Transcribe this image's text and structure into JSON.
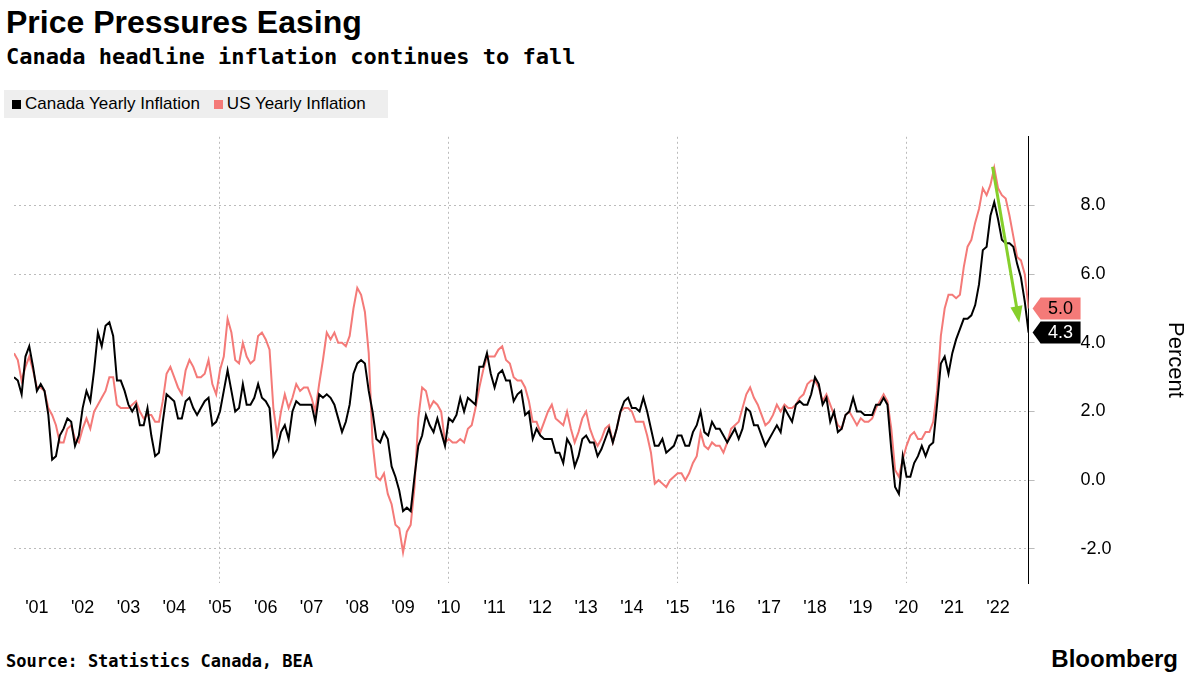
{
  "chart_data": {
    "type": "line",
    "title": "Price Pressures Easing",
    "subtitle": "Canada headline inflation continues to fall",
    "source": "Source: Statistics Canada, BEA",
    "brand": "Bloomberg",
    "ylabel": "Percent",
    "grid": true,
    "categories": [
      null,
      null,
      null,
      null,
      null,
      null,
      "'01",
      null,
      null,
      null,
      null,
      null,
      null,
      null,
      null,
      null,
      null,
      null,
      "'02",
      null,
      null,
      null,
      null,
      null,
      null,
      null,
      null,
      null,
      null,
      null,
      "'03",
      null,
      null,
      null,
      null,
      null,
      null,
      null,
      null,
      null,
      null,
      null,
      "'04",
      null,
      null,
      null,
      null,
      null,
      null,
      null,
      null,
      null,
      null,
      null,
      "'05",
      null,
      null,
      null,
      null,
      null,
      null,
      null,
      null,
      null,
      null,
      null,
      "'06",
      null,
      null,
      null,
      null,
      null,
      null,
      null,
      null,
      null,
      null,
      null,
      "'07",
      null,
      null,
      null,
      null,
      null,
      null,
      null,
      null,
      null,
      null,
      null,
      "'08",
      null,
      null,
      null,
      null,
      null,
      null,
      null,
      null,
      null,
      null,
      null,
      "'09",
      null,
      null,
      null,
      null,
      null,
      null,
      null,
      null,
      null,
      null,
      null,
      "'10",
      null,
      null,
      null,
      null,
      null,
      null,
      null,
      null,
      null,
      null,
      null,
      "'11",
      null,
      null,
      null,
      null,
      null,
      null,
      null,
      null,
      null,
      null,
      null,
      "'12",
      null,
      null,
      null,
      null,
      null,
      null,
      null,
      null,
      null,
      null,
      null,
      "'13",
      null,
      null,
      null,
      null,
      null,
      null,
      null,
      null,
      null,
      null,
      null,
      "'14",
      null,
      null,
      null,
      null,
      null,
      null,
      null,
      null,
      null,
      null,
      null,
      "'15",
      null,
      null,
      null,
      null,
      null,
      null,
      null,
      null,
      null,
      null,
      null,
      "'16",
      null,
      null,
      null,
      null,
      null,
      null,
      null,
      null,
      null,
      null,
      null,
      "'17",
      null,
      null,
      null,
      null,
      null,
      null,
      null,
      null,
      null,
      null,
      null,
      "'18",
      null,
      null,
      null,
      null,
      null,
      null,
      null,
      null,
      null,
      null,
      null,
      "'19",
      null,
      null,
      null,
      null,
      null,
      null,
      null,
      null,
      null,
      null,
      null,
      "'20",
      null,
      null,
      null,
      null,
      null,
      null,
      null,
      null,
      null,
      null,
      null,
      "'21",
      null,
      null,
      null,
      null,
      null,
      null,
      null,
      null,
      null,
      null,
      null,
      "'22",
      null,
      null,
      null,
      null,
      null,
      null,
      null,
      null
    ],
    "series": [
      {
        "name": "Canada Yearly Inflation",
        "color": "#000000",
        "values": [
          3.0,
          2.9,
          2.5,
          3.6,
          3.9,
          3.3,
          2.6,
          2.8,
          2.6,
          1.9,
          0.6,
          0.7,
          1.3,
          1.5,
          1.8,
          1.7,
          1.0,
          1.3,
          2.1,
          2.6,
          2.3,
          3.2,
          4.3,
          3.9,
          4.5,
          4.6,
          4.2,
          2.9,
          2.9,
          2.6,
          2.2,
          2.0,
          2.2,
          1.6,
          1.6,
          2.1,
          1.3,
          0.7,
          0.8,
          1.7,
          2.5,
          2.4,
          2.3,
          1.8,
          1.8,
          2.3,
          2.4,
          2.1,
          1.9,
          2.1,
          2.3,
          2.4,
          1.6,
          1.7,
          2.0,
          2.6,
          3.2,
          2.6,
          2.0,
          2.1,
          2.8,
          2.2,
          2.2,
          2.4,
          2.8,
          2.4,
          2.3,
          2.1,
          0.7,
          0.9,
          1.4,
          1.6,
          1.2,
          2.0,
          2.3,
          2.2,
          2.2,
          2.2,
          2.2,
          1.7,
          2.5,
          2.4,
          2.5,
          2.4,
          2.2,
          1.8,
          1.4,
          1.7,
          2.2,
          3.1,
          3.4,
          3.5,
          3.4,
          2.6,
          2.0,
          1.2,
          1.1,
          1.4,
          1.2,
          0.4,
          0.1,
          -0.3,
          -0.9,
          -0.8,
          -0.9,
          0.1,
          1.0,
          1.3,
          1.9,
          1.6,
          1.4,
          1.8,
          1.4,
          1.0,
          1.8,
          1.7,
          1.9,
          2.4,
          2.0,
          2.4,
          2.3,
          2.2,
          3.3,
          3.3,
          3.7,
          3.1,
          2.7,
          3.1,
          3.2,
          2.9,
          2.9,
          2.3,
          2.5,
          2.6,
          1.9,
          2.0,
          1.2,
          1.5,
          1.3,
          1.2,
          1.2,
          1.2,
          0.8,
          0.8,
          0.5,
          1.2,
          1.0,
          0.4,
          0.7,
          1.2,
          1.3,
          1.1,
          1.1,
          0.7,
          0.9,
          1.2,
          1.5,
          1.1,
          1.5,
          2.0,
          2.3,
          2.4,
          2.1,
          2.1,
          2.0,
          2.4,
          2.0,
          1.5,
          1.0,
          1.0,
          1.2,
          0.8,
          0.9,
          1.0,
          1.3,
          1.3,
          1.0,
          1.0,
          1.4,
          1.6,
          2.0,
          1.4,
          1.3,
          1.7,
          1.5,
          1.5,
          1.3,
          1.1,
          1.3,
          1.5,
          1.2,
          1.5,
          2.1,
          2.0,
          1.6,
          1.6,
          1.3,
          1.0,
          1.2,
          1.4,
          1.6,
          1.4,
          2.1,
          1.9,
          1.7,
          2.2,
          2.3,
          2.2,
          2.2,
          2.5,
          3.0,
          2.8,
          2.2,
          2.4,
          1.7,
          2.0,
          1.4,
          1.5,
          1.9,
          2.0,
          2.4,
          2.0,
          2.0,
          1.9,
          1.9,
          1.9,
          2.2,
          2.2,
          2.4,
          2.2,
          0.9,
          -0.2,
          -0.4,
          0.7,
          0.1,
          0.1,
          0.5,
          0.7,
          1.0,
          0.7,
          1.0,
          1.1,
          2.2,
          3.4,
          3.6,
          3.1,
          3.7,
          4.1,
          4.4,
          4.7,
          4.7,
          4.8,
          5.1,
          5.7,
          6.7,
          6.8,
          7.7,
          8.1,
          7.6,
          7.0,
          6.9,
          6.9,
          6.8,
          6.3,
          5.9,
          5.2,
          4.3
        ]
      },
      {
        "name": "US Yearly Inflation",
        "color": "#f47a78",
        "values": [
          3.7,
          3.5,
          2.9,
          3.3,
          3.6,
          3.2,
          2.7,
          2.7,
          2.6,
          2.1,
          1.9,
          1.6,
          1.1,
          1.1,
          1.5,
          1.6,
          1.2,
          1.1,
          1.5,
          1.8,
          1.5,
          2.0,
          2.2,
          2.4,
          2.6,
          3.0,
          3.0,
          2.2,
          2.1,
          2.1,
          2.1,
          2.2,
          2.3,
          2.0,
          1.8,
          1.9,
          1.9,
          1.7,
          1.7,
          2.3,
          3.1,
          3.3,
          3.0,
          2.7,
          2.5,
          3.2,
          3.5,
          3.3,
          3.0,
          3.0,
          3.1,
          3.5,
          2.8,
          2.5,
          3.2,
          3.6,
          4.7,
          4.3,
          3.5,
          3.4,
          4.0,
          3.6,
          3.4,
          3.5,
          4.2,
          4.3,
          4.1,
          3.8,
          2.1,
          1.3,
          2.0,
          2.5,
          2.1,
          2.4,
          2.8,
          2.6,
          2.7,
          2.7,
          2.4,
          2.0,
          2.8,
          3.5,
          4.3,
          4.1,
          4.3,
          4.0,
          4.0,
          3.9,
          4.2,
          5.0,
          5.6,
          5.4,
          4.9,
          3.7,
          1.1,
          0.1,
          0.0,
          0.2,
          -0.4,
          -0.7,
          -1.3,
          -1.4,
          -2.1,
          -1.5,
          -1.3,
          -0.2,
          1.8,
          2.7,
          2.6,
          2.1,
          2.3,
          2.2,
          2.0,
          1.1,
          1.2,
          1.1,
          1.1,
          1.2,
          1.1,
          1.5,
          1.6,
          2.1,
          2.7,
          3.2,
          3.6,
          3.6,
          3.6,
          3.8,
          3.9,
          3.5,
          3.4,
          3.0,
          2.9,
          2.9,
          2.7,
          2.3,
          1.7,
          1.7,
          1.4,
          1.7,
          2.0,
          2.2,
          1.8,
          1.7,
          1.6,
          2.0,
          1.5,
          1.1,
          1.4,
          1.8,
          2.0,
          1.5,
          1.2,
          1.0,
          1.2,
          1.5,
          1.6,
          1.1,
          1.5,
          2.0,
          2.1,
          2.1,
          2.0,
          1.7,
          1.7,
          1.7,
          1.3,
          0.8,
          -0.1,
          0.0,
          -0.1,
          -0.2,
          0.0,
          0.1,
          0.2,
          0.2,
          0.0,
          0.2,
          0.5,
          0.7,
          1.4,
          1.0,
          0.9,
          1.1,
          1.0,
          1.0,
          0.8,
          1.1,
          1.5,
          1.6,
          1.7,
          2.1,
          2.5,
          2.7,
          2.4,
          2.2,
          1.9,
          1.6,
          1.7,
          1.9,
          2.2,
          2.0,
          2.2,
          2.1,
          2.1,
          2.2,
          2.4,
          2.5,
          2.8,
          2.9,
          2.9,
          2.7,
          2.3,
          2.5,
          2.2,
          1.9,
          1.6,
          1.5,
          1.9,
          2.0,
          1.8,
          1.6,
          1.8,
          1.7,
          1.7,
          1.8,
          2.1,
          2.3,
          2.5,
          2.3,
          1.5,
          0.3,
          0.1,
          0.6,
          1.0,
          1.3,
          1.4,
          1.2,
          1.2,
          1.4,
          1.4,
          1.7,
          2.6,
          4.2,
          5.0,
          5.4,
          5.4,
          5.3,
          5.4,
          6.2,
          6.8,
          7.0,
          7.5,
          7.9,
          8.5,
          8.3,
          8.6,
          9.1,
          8.5,
          8.3,
          8.2,
          7.7,
          7.1,
          6.5,
          6.4,
          6.0,
          5.0
        ]
      }
    ],
    "ylim": [
      -3,
      10
    ],
    "yticks": [
      {
        "value": -2,
        "label": "-2.0"
      },
      {
        "value": 0,
        "label": "0.0"
      },
      {
        "value": 2,
        "label": "2.0"
      },
      {
        "value": 4,
        "label": "4.0"
      },
      {
        "value": 6,
        "label": "6.0"
      },
      {
        "value": 8,
        "label": "8.0"
      }
    ],
    "annotations": [
      {
        "text": "5.0",
        "y": 5.0,
        "series": "US Yearly Inflation"
      },
      {
        "text": "4.3",
        "y": 4.3,
        "series": "Canada Yearly Inflation"
      }
    ]
  }
}
